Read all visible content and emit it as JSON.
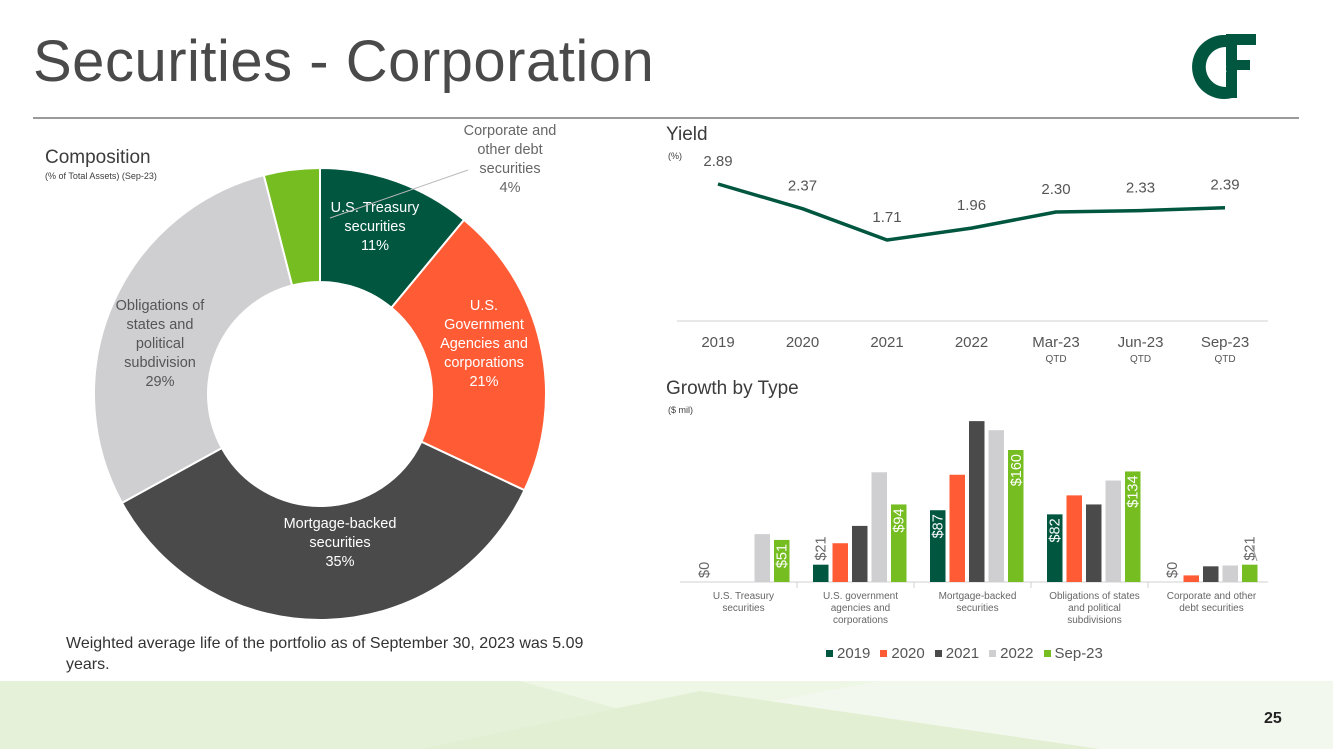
{
  "page": {
    "title": "Securities - Corporation",
    "page_number": "25",
    "note": "Weighted average life of the portfolio as of September 30, 2023 was 5.09 years.",
    "logo_text": "C&F"
  },
  "colors": {
    "dark_green": "#00563f",
    "orange": "#ff5b35",
    "dark_gray": "#4a4a4a",
    "light_gray": "#cfcfd1",
    "lime": "#76bd22",
    "line": "#00563f"
  },
  "chart_data": [
    {
      "id": "composition",
      "type": "pie",
      "title": "Composition",
      "subtitle": "(% of Total Assets) (Sep-23)",
      "slices": [
        {
          "label": "U.S. Treasury securities",
          "value": 11,
          "display": "11%",
          "color": "#00563f"
        },
        {
          "label": "U.S. Government Agencies and corporations",
          "value": 21,
          "display": "21%",
          "color": "#ff5b35"
        },
        {
          "label": "Mortgage-backed securities",
          "value": 35,
          "display": "35%",
          "color": "#4a4a4a"
        },
        {
          "label": "Obligations of states and political subdivision",
          "value": 29,
          "display": "29%",
          "color": "#cfcfd1"
        },
        {
          "label": "Corporate and other debt securities",
          "value": 4,
          "display": "4%",
          "color": "#76bd22"
        }
      ]
    },
    {
      "id": "yield",
      "type": "line",
      "title": "Yield",
      "subtitle": "(%)",
      "categories": [
        "2019",
        "2020",
        "2021",
        "2022",
        "Mar-23",
        "Jun-23",
        "Sep-23"
      ],
      "sublabels": [
        "",
        "",
        "",
        "",
        "QTD",
        "QTD",
        "QTD"
      ],
      "values": [
        2.89,
        2.37,
        1.71,
        1.96,
        2.3,
        2.33,
        2.39
      ],
      "labels": [
        "2.89",
        "2.37",
        "1.71",
        "1.96",
        "2.30",
        "2.33",
        "2.39"
      ],
      "ylim": [
        0,
        3.2
      ]
    },
    {
      "id": "growth",
      "type": "bar",
      "title": "Growth by Type",
      "subtitle": "($ mil)",
      "categories": [
        "U.S. Treasury securities",
        "U.S. government agencies and corporations",
        "Mortgage-backed securities",
        "Obligations of states and political subdivisions",
        "Corporate and other debt securities"
      ],
      "series": [
        {
          "name": "2019",
          "color": "#00563f",
          "values": [
            0,
            21,
            87,
            82,
            0
          ],
          "labels": [
            "$0",
            "$21",
            "$87",
            "$82",
            "$0"
          ]
        },
        {
          "name": "2020",
          "color": "#ff5b35",
          "values": [
            0,
            47,
            130,
            105,
            8
          ],
          "labels": [
            "",
            "",
            "",
            "",
            ""
          ]
        },
        {
          "name": "2021",
          "color": "#4a4a4a",
          "values": [
            0,
            68,
            195,
            94,
            19
          ],
          "labels": [
            "",
            "",
            "",
            "",
            ""
          ]
        },
        {
          "name": "2022",
          "color": "#cfcfd1",
          "values": [
            58,
            133,
            184,
            123,
            20
          ],
          "labels": [
            "",
            "",
            "",
            "",
            ""
          ]
        },
        {
          "name": "Sep-23",
          "color": "#76bd22",
          "values": [
            51,
            94,
            160,
            134,
            21
          ],
          "labels": [
            "$51",
            "$94",
            "$160",
            "$134",
            "$21"
          ]
        }
      ],
      "ylim": [
        0,
        200
      ]
    }
  ]
}
